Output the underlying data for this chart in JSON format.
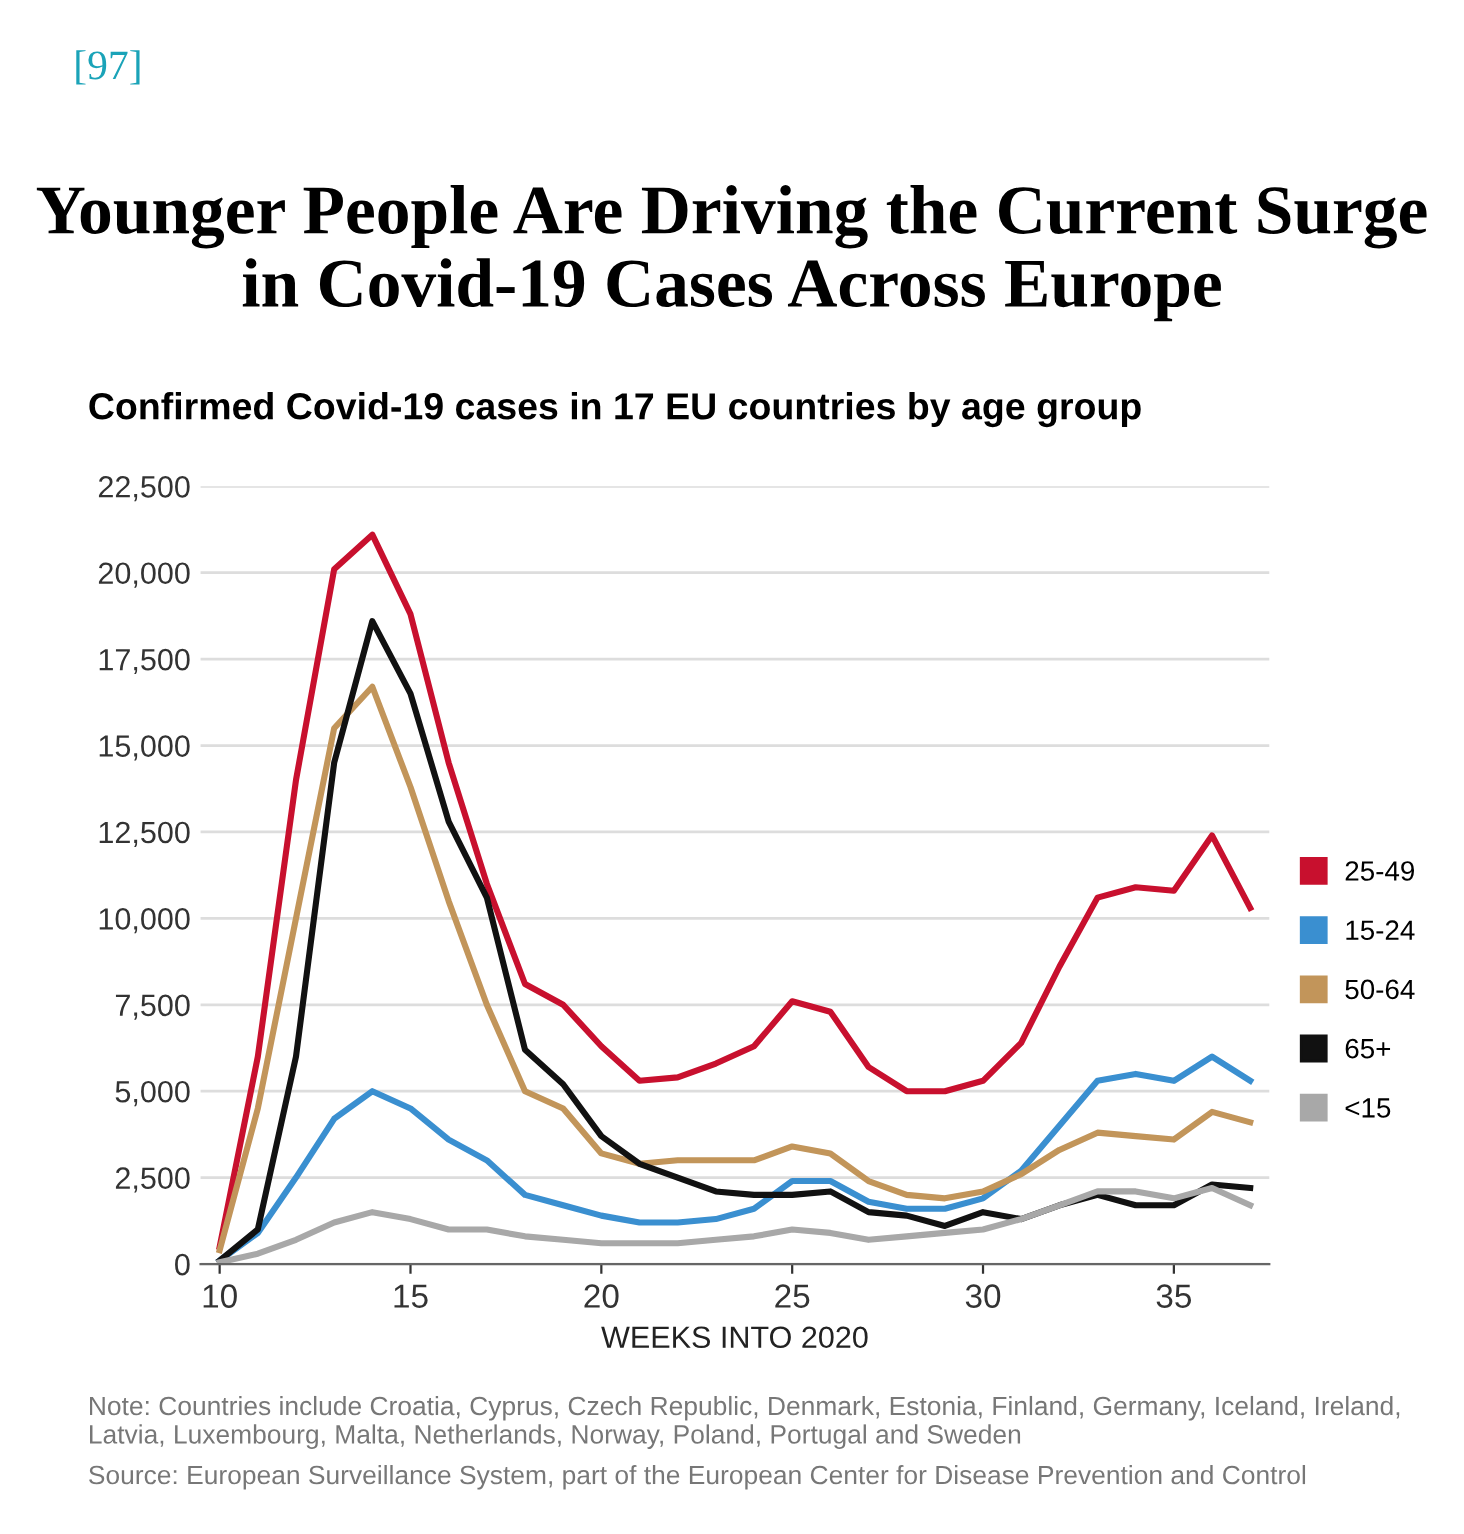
{
  "chart_data": {
    "type": "line",
    "title": "Younger People Are Driving the Current Surge in Covid-19 Cases Across Europe",
    "subtitle": "Confirmed Covid-19 cases in 17 EU countries by age group",
    "xlabel": "WEEKS INTO 2020",
    "annotations": [
      "[97]",
      "Note: Countries include Croatia, Cyprus, Czech Republic, Denmark, Estonia, Finland, Germany, Iceland, Ireland, Latvia, Luxembourg, Malta, Netherlands, Norway, Poland, Portugal and Sweden",
      "Source: European Surveillance System, part of the European Center for Disease Prevention and Control"
    ],
    "x": [
      10,
      11,
      12,
      13,
      14,
      15,
      16,
      17,
      18,
      19,
      20,
      21,
      22,
      23,
      24,
      25,
      26,
      27,
      28,
      29,
      30,
      31,
      32,
      33,
      34,
      35,
      36,
      37
    ],
    "series": [
      {
        "name": "25-49",
        "color": "#c8102e",
        "values": [
          500,
          6000,
          14000,
          20100,
          21100,
          18800,
          14500,
          11000,
          8100,
          7500,
          6300,
          5300,
          5400,
          5800,
          6300,
          7600,
          7300,
          5700,
          5000,
          5000,
          5300,
          6400,
          8600,
          10600,
          10900,
          10800,
          12400,
          10300
        ]
      },
      {
        "name": "15-24",
        "color": "#3a8fd0",
        "values": [
          100,
          900,
          2500,
          4200,
          5000,
          4500,
          3600,
          3000,
          2000,
          1700,
          1400,
          1200,
          1200,
          1300,
          1600,
          2400,
          2400,
          1800,
          1600,
          1600,
          1900,
          2700,
          4000,
          5300,
          5500,
          5300,
          6000,
          5300
        ]
      },
      {
        "name": "50-64",
        "color": "#c2955a",
        "values": [
          400,
          4500,
          10000,
          15500,
          16700,
          13800,
          10500,
          7500,
          5000,
          4500,
          3200,
          2900,
          3000,
          3000,
          3000,
          3400,
          3200,
          2400,
          2000,
          1900,
          2100,
          2600,
          3300,
          3800,
          3700,
          3600,
          4400,
          4100
        ]
      },
      {
        "name": "65+",
        "color": "#111111",
        "values": [
          100,
          1000,
          6000,
          14500,
          18600,
          16500,
          12800,
          10600,
          6200,
          5200,
          3700,
          2900,
          2500,
          2100,
          2000,
          2000,
          2100,
          1500,
          1400,
          1100,
          1500,
          1300,
          1700,
          2000,
          1700,
          1700,
          2300,
          2200
        ]
      },
      {
        "name": "<15",
        "color": "#a8a8a8",
        "values": [
          50,
          300,
          700,
          1200,
          1500,
          1300,
          1000,
          1000,
          800,
          700,
          600,
          600,
          600,
          700,
          800,
          1000,
          900,
          700,
          800,
          900,
          1000,
          1300,
          1700,
          2100,
          2100,
          1900,
          2200,
          1700
        ]
      }
    ],
    "xlim": [
      9.5,
      37.5
    ],
    "xticks": [
      10,
      15,
      20,
      25,
      30,
      35
    ],
    "ylim": [
      0,
      22500
    ],
    "yticks": [
      {
        "value": 0,
        "label": "0"
      },
      {
        "value": 2500,
        "label": "2,500"
      },
      {
        "value": 5000,
        "label": "5,000"
      },
      {
        "value": 7500,
        "label": "7,500"
      },
      {
        "value": 10000,
        "label": "10,000"
      },
      {
        "value": 12500,
        "label": "12,500"
      },
      {
        "value": 15000,
        "label": "15,000"
      },
      {
        "value": 17500,
        "label": "17,500"
      },
      {
        "value": 20000,
        "label": "20,000"
      },
      {
        "value": 22500,
        "label": "22,500"
      }
    ],
    "grid": "y",
    "legend": "right"
  }
}
